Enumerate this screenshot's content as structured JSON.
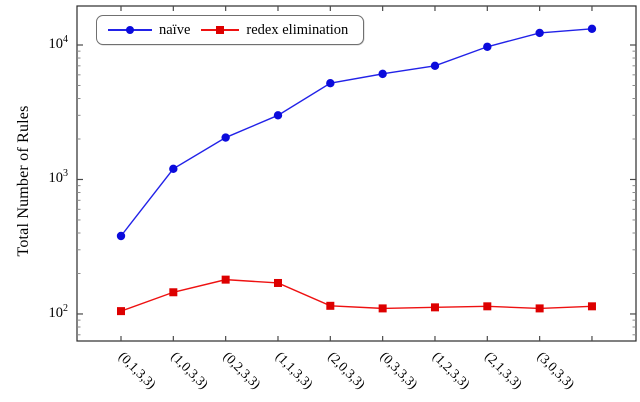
{
  "chart_data": {
    "type": "line",
    "title": "",
    "xlabel": "",
    "ylabel": "Total Number of Rules",
    "y_scale": "log",
    "ylim_log10": [
      1.799,
      4.29
    ],
    "grid": "off",
    "legend_position": "top-left",
    "y_major_ticks": [
      {
        "value": 100,
        "base": "10",
        "exp": "2"
      },
      {
        "value": 1000,
        "base": "10",
        "exp": "3"
      },
      {
        "value": 10000,
        "base": "10",
        "exp": "4"
      }
    ],
    "categories": [
      "(0,1,3,3)",
      "(1,0,3,3)",
      "(0,2,3,3)",
      "(1,1,3,3)",
      "(2,0,3,3)",
      "(0,3,3,3)",
      "(1,2,3,3)",
      "(2,1,3,3)",
      "(3,0,3,3)",
      ""
    ],
    "series": [
      {
        "name": "naïve",
        "marker": "circle",
        "color": "#0b0bdc",
        "line_color": "#2222e8",
        "values": [
          380,
          1200,
          2050,
          3000,
          5200,
          6100,
          7000,
          9700,
          12300,
          13200
        ]
      },
      {
        "name": "redex elimination",
        "marker": "square",
        "color": "#dd0000",
        "line_color": "#ee1111",
        "values": [
          105,
          145,
          180,
          170,
          115,
          110,
          112,
          114,
          110,
          114
        ]
      }
    ]
  },
  "colors": {
    "frame": "#2b2b2b",
    "major_tick": "#4a4a4a",
    "minor_tick": "#8a8a8a",
    "text": "#000000",
    "legend_border": "#707070"
  }
}
